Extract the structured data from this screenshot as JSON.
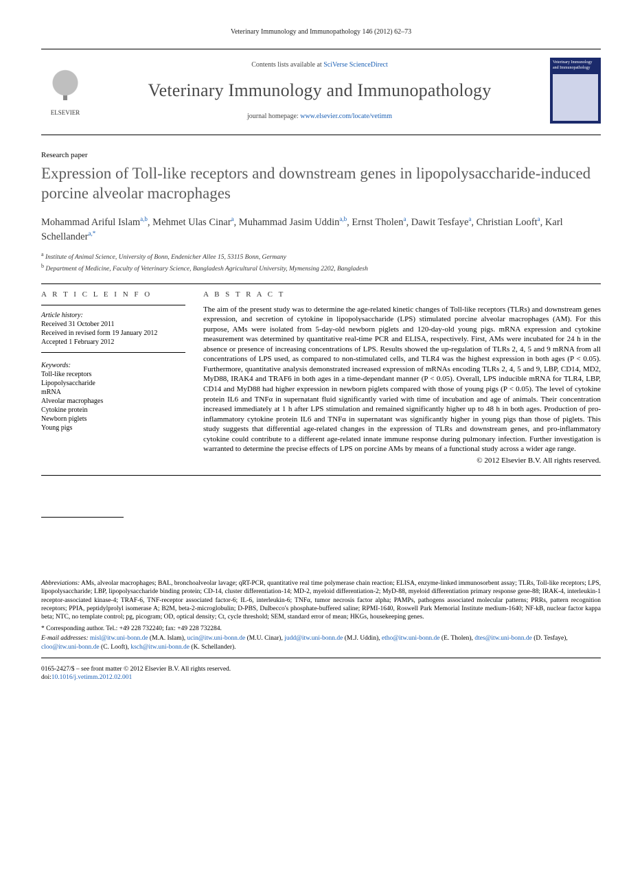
{
  "running_head": "Veterinary Immunology and Immunopathology 146 (2012) 62–73",
  "masthead": {
    "publisher_logo_label": "ELSEVIER",
    "contents_prefix": "Contents lists available at ",
    "contents_link_text": "SciVerse ScienceDirect",
    "journal_name": "Veterinary Immunology and Immunopathology",
    "homepage_prefix": "journal homepage: ",
    "homepage_url": "www.elsevier.com/locate/vetimm",
    "cover_caption": "Veterinary Immunology and Immunopathology"
  },
  "section_label": "Research paper",
  "title": "Expression of Toll-like receptors and downstream genes in lipopolysaccharide-induced porcine alveolar macrophages",
  "authors_html": "Mohammad Ariful Islam<sup>a,b</sup>, Mehmet Ulas Cinar<sup>a</sup>, Muhammad Jasim Uddin<sup>a,b</sup>, Ernst Tholen<sup>a</sup>, Dawit Tesfaye<sup>a</sup>, Christian Looft<sup>a</sup>, Karl Schellander<sup>a,*</sup>",
  "affiliations": [
    {
      "mark": "a",
      "text": "Institute of Animal Science, University of Bonn, Endenicher Allee 15, 53115 Bonn, Germany"
    },
    {
      "mark": "b",
      "text": "Department of Medicine, Faculty of Veterinary Science, Bangladesh Agricultural University, Mymensing 2202, Bangladesh"
    }
  ],
  "article_info": {
    "heading": "A R T I C L E  I N F O",
    "history_label": "Article history:",
    "history": [
      "Received 31 October 2011",
      "Received in revised form 19 January 2012",
      "Accepted 1 February 2012"
    ],
    "keywords_label": "Keywords:",
    "keywords": [
      "Toll-like receptors",
      "Lipopolysaccharide",
      "mRNA",
      "Alveolar macrophages",
      "Cytokine protein",
      "Newborn piglets",
      "Young pigs"
    ]
  },
  "abstract_heading": "A B S T R A C T",
  "abstract": "The aim of the present study was to determine the age-related kinetic changes of Toll-like receptors (TLRs) and downstream genes expression, and secretion of cytokine in lipopolysaccharide (LPS) stimulated porcine alveolar macrophages (AM). For this purpose, AMs were isolated from 5-day-old newborn piglets and 120-day-old young pigs. mRNA expression and cytokine measurement was determined by quantitative real-time PCR and ELISA, respectively. First, AMs were incubated for 24 h in the absence or presence of increasing concentrations of LPS. Results showed the up-regulation of TLRs 2, 4, 5 and 9 mRNA from all concentrations of LPS used, as compared to non-stimulated cells, and TLR4 was the highest expression in both ages (P < 0.05). Furthermore, quantitative analysis demonstrated increased expression of mRNAs encoding TLRs 2, 4, 5 and 9, LBP, CD14, MD2, MyD88, IRAK4 and TRAF6 in both ages in a time-dependant manner (P < 0.05). Overall, LPS inducible mRNA for TLR4, LBP, CD14 and MyD88 had higher expression in newborn piglets compared with those of young pigs (P < 0.05). The level of cytokine protein IL6 and TNFα in supernatant fluid significantly varied with time of incubation and age of animals. Their concentration increased immediately at 1 h after LPS stimulation and remained significantly higher up to 48 h in both ages. Production of pro-inflammatory cytokine protein IL6 and TNFα in supernatant was significantly higher in young pigs than those of piglets. This study suggests that differential age-related changes in the expression of TLRs and downstream genes, and pro-inflammatory cytokine could contribute to a different age-related innate immune response during pulmonary infection. Further investigation is warranted to determine the precise effects of LPS on porcine AMs by means of a functional study across a wider age range.",
  "copyright": "© 2012 Elsevier B.V. All rights reserved.",
  "abbrev_lead": "Abbreviations:",
  "abbreviations": "AMs, alveolar macrophages; BAL, bronchoalveolar lavage; qRT-PCR, quantitative real time polymerase chain reaction; ELISA, enzyme-linked immunosorbent assay; TLRs, Toll-like receptors; LPS, lipopolysaccharide; LBP, lipopolysaccharide binding protein; CD-14, cluster differentiation-14; MD-2, myeloid differentiation-2; MyD-88, myeloid differentiation primary response gene-88; IRAK-4, interleukin-1 receptor-associated kinase-4; TRAF-6, TNF-receptor associated factor-6; IL-6, interleukin-6; TNFα, tumor necrosis factor alpha; PAMPs, pathogens associated molecular patterns; PRRs, pattern recognition receptors; PPIA, peptidylprolyl isomerase A; B2M, beta-2-microglobulin; D-PBS, Dulbecco's phosphate-buffered saline; RPMI-1640, Roswell Park Memorial Institute medium-1640; NF-kB, nuclear factor kappa beta; NTC, no template control; pg, picogram; OD, optical density; Ct, cycle threshold; SEM, standard error of mean; HKGs, housekeeping genes.",
  "corresponding": "* Corresponding author. Tel.: +49 228 732240; fax: +49 228 732284.",
  "emails_label": "E-mail addresses:",
  "emails": [
    {
      "addr": "misl@itw.uni-bonn.de",
      "who": "(M.A. Islam)"
    },
    {
      "addr": "ucin@itw.uni-bonn.de",
      "who": "(M.U. Cinar)"
    },
    {
      "addr": "judd@itw.uni-bonn.de",
      "who": "(M.J. Uddin)"
    },
    {
      "addr": "etho@itw.uni-bonn.de",
      "who": "(E. Tholen)"
    },
    {
      "addr": "dtes@itw.uni-bonn.de",
      "who": "(D. Tesfaye)"
    },
    {
      "addr": "cloo@itw.uni-bonn.de",
      "who": "(C. Looft)"
    },
    {
      "addr": "ksch@itw.uni-bonn.de",
      "who": "(K. Schellander)."
    }
  ],
  "issn_line": "0165-2427/$ – see front matter © 2012 Elsevier B.V. All rights reserved.",
  "doi_prefix": "doi:",
  "doi": "10.1016/j.vetimm.2012.02.001"
}
